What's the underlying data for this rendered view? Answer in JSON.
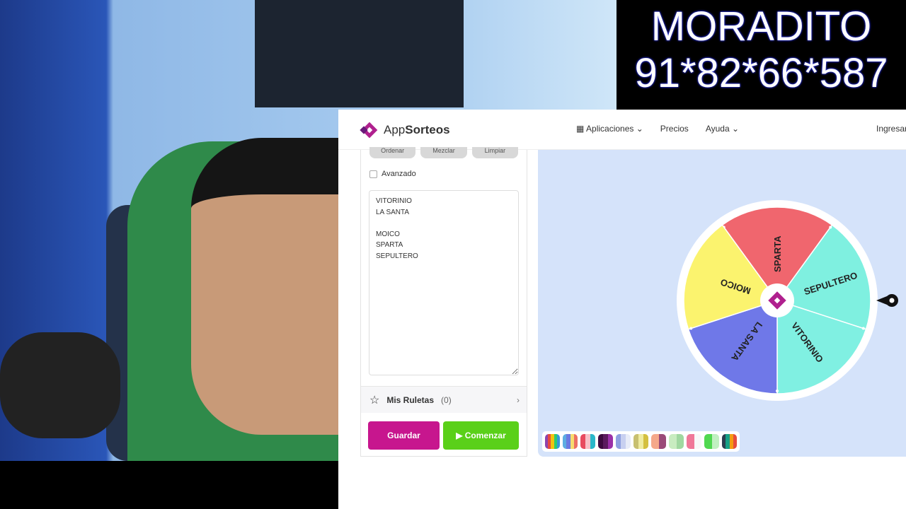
{
  "overlay": {
    "line1": "MORADITO",
    "line2": "91*82*66*587"
  },
  "nav": {
    "brand_pre": "App",
    "brand_bold": "Sorteos",
    "links": [
      "Aplicaciones",
      "Precios",
      "Ayuda"
    ],
    "login": "Ingresar"
  },
  "list_tools": {
    "buttons": [
      "Ordenar",
      "Mezclar",
      "Limpiar"
    ],
    "advanced_label": "Avanzado",
    "entries": "VITORINIO\nLA SANTA\n\nMOICO\nSPARTA\nSEPULTERO"
  },
  "mis_ruletas": {
    "label": "Mis Ruletas",
    "count": "(0)"
  },
  "actions": {
    "save": "Guardar",
    "start": "▶ Comenzar"
  },
  "wheel": {
    "slices": [
      {
        "label": "SPARTA",
        "color": "#f0666e"
      },
      {
        "label": "SEPULTERO",
        "color": "#7ff0e0"
      },
      {
        "label": "VITORINIO",
        "color": "#80f0e2"
      },
      {
        "label": "LA SANTA",
        "color": "#6f78e8"
      },
      {
        "label": "MOICO",
        "color": "#fbf36e"
      }
    ]
  },
  "palettes": [
    [
      "#8e44ad",
      "#e74c3c",
      "#f1c40f",
      "#2ecc71",
      "#3498db"
    ],
    [
      "#5dade2",
      "#6c7ae0",
      "#f7dc6f",
      "#ec7063"
    ],
    [
      "#e84a5f",
      "#f8c0c8",
      "#2ab7ca"
    ],
    [
      "#3d0a3f",
      "#5b1a5e",
      "#9b30a8"
    ],
    [
      "#8fa0e0",
      "#c8d0f0",
      "#e8ecf8"
    ],
    [
      "#c8c070",
      "#f0eca0",
      "#d4c040"
    ],
    [
      "#f5a88a",
      "#9a4a78"
    ],
    [
      "#c8ecc0",
      "#a0d8a0"
    ],
    [
      "#f07898",
      "#f8f8f8"
    ],
    [
      "#50d850",
      "#c0f0c0"
    ],
    [
      "#2c3e50",
      "#16a085",
      "#f39c12",
      "#e74c3c"
    ]
  ]
}
